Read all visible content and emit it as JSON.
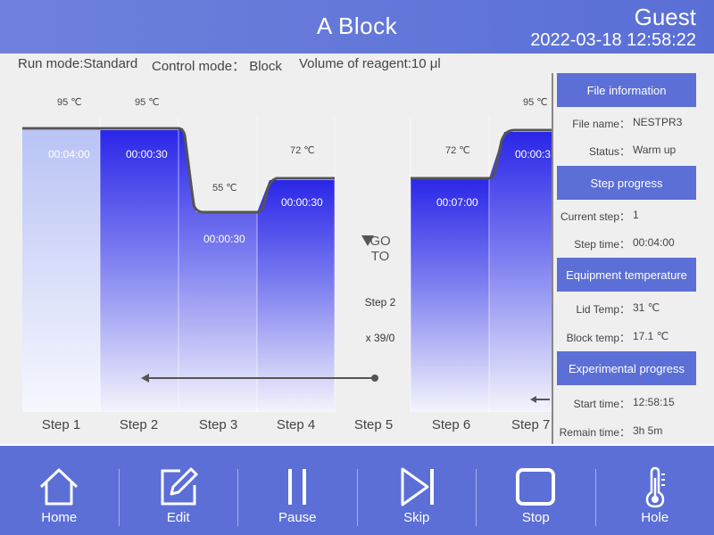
{
  "header": {
    "title": "A Block",
    "user": "Guest",
    "datetime": "2022-03-18 12:58:22"
  },
  "info": {
    "run_mode": "Run mode:Standard",
    "control_mode": "Control mode： Block",
    "volume": "Volume of reagent:10 μl"
  },
  "steps": [
    {
      "label": "Step 1",
      "temp": "95 ℃",
      "time": "00:04:00"
    },
    {
      "label": "Step 2",
      "temp": "95 ℃",
      "time": "00:00:30"
    },
    {
      "label": "Step 3",
      "temp": "55 ℃",
      "time": "00:00:30"
    },
    {
      "label": "Step 4",
      "temp": "72 ℃",
      "time": "00:00:30"
    },
    {
      "label": "Step 5"
    },
    {
      "label": "Step 6",
      "temp": "72 ℃",
      "time": "00:07:00"
    },
    {
      "label": "Step 7",
      "temp": "95 ℃",
      "time": "00:00:3"
    }
  ],
  "goto": {
    "line1": "GO",
    "line2": "TO",
    "target": "Step 2",
    "count": "x 39/0"
  },
  "panel": {
    "file_info": {
      "heading": "File information",
      "file_name_label": "File name：",
      "file_name": "NESTPR3",
      "status_label": "Status：",
      "status": "Warm up"
    },
    "step_progress": {
      "heading": "Step progress",
      "current_step_label": "Current step：",
      "current_step": "1",
      "step_time_label": "Step time：",
      "step_time": "00:04:00"
    },
    "equipment_temperature": {
      "heading": "Equipment temperature",
      "lid_temp_label": "Lid Temp：",
      "lid_temp": "31 ℃",
      "block_temp_label": "Block temp：",
      "block_temp": "17.1 ℃"
    },
    "experimental_progress": {
      "heading": "Experimental progress",
      "start_time_label": "Start time：",
      "start_time": "12:58:15",
      "remain_time_label": "Remain time：",
      "remain_time": "3h 5m"
    }
  },
  "toolbar": {
    "home": "Home",
    "edit": "Edit",
    "pause": "Pause",
    "skip": "Skip",
    "stop": "Stop",
    "hole": "Hole"
  },
  "colors": {
    "accent": "#5c6fd6",
    "bar_top": "#2a26e8",
    "bar_bottom": "#f4f4fc",
    "active_bar_top": "#b9c3f5",
    "profile_line": "#555555"
  }
}
